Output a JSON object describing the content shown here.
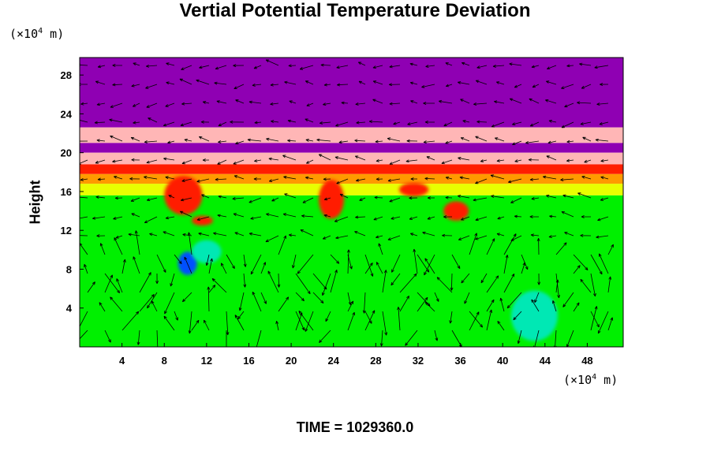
{
  "chart_data": {
    "type": "heatmap",
    "title": "Vertial Potential Temperature Deviation",
    "ylabel": "Height",
    "xlabel": "",
    "x_unit": {
      "prefix": "(×10",
      "exp": "4",
      "suffix": " m)"
    },
    "y_unit": {
      "prefix": "(×10",
      "exp": "4",
      "suffix": " m)"
    },
    "xlim": [
      0,
      51.4
    ],
    "ylim": [
      0,
      29.8
    ],
    "x_ticks": [
      4,
      8,
      12,
      16,
      20,
      24,
      28,
      32,
      36,
      40,
      44,
      48
    ],
    "y_ticks": [
      4,
      8,
      12,
      16,
      20,
      24,
      28
    ],
    "grid": false,
    "overlay": "wind vector arrows",
    "colors": {
      "top": "#8f00b3",
      "pink": "#ffb6b6",
      "red": "#ff1e00",
      "orange": "#ff9a00",
      "yellow": "#e8ff00",
      "green": "#00f000",
      "cyan": "#00e8b4",
      "blue": "#0050ff"
    },
    "layers": [
      {
        "from": 22.6,
        "to": 29.8,
        "color": "top"
      },
      {
        "from": 21.0,
        "to": 22.6,
        "color": "pink"
      },
      {
        "from": 20.0,
        "to": 21.0,
        "color": "top"
      },
      {
        "from": 18.8,
        "to": 20.0,
        "color": "pink"
      },
      {
        "from": 17.8,
        "to": 18.8,
        "color": "red"
      },
      {
        "from": 16.8,
        "to": 17.8,
        "color": "orange"
      },
      {
        "from": 15.6,
        "to": 16.8,
        "color": "yellow"
      },
      {
        "from": 0,
        "to": 15.6,
        "color": "green"
      }
    ],
    "features": [
      {
        "x": 9.8,
        "y": 15.6,
        "rx": 1.8,
        "ry": 2.0,
        "color": "red"
      },
      {
        "x": 23.8,
        "y": 15.2,
        "rx": 1.2,
        "ry": 2.0,
        "color": "red"
      },
      {
        "x": 35.6,
        "y": 14.0,
        "rx": 1.2,
        "ry": 1.0,
        "color": "red"
      },
      {
        "x": 31.6,
        "y": 16.2,
        "rx": 1.4,
        "ry": 0.7,
        "color": "red"
      },
      {
        "x": 11.6,
        "y": 13.0,
        "rx": 1.0,
        "ry": 0.5,
        "color": "red"
      },
      {
        "x": 10.2,
        "y": 8.6,
        "rx": 0.9,
        "ry": 1.2,
        "color": "blue"
      },
      {
        "x": 12.0,
        "y": 9.8,
        "rx": 1.4,
        "ry": 1.2,
        "color": "cyan"
      },
      {
        "x": 43.0,
        "y": 3.2,
        "rx": 2.2,
        "ry": 2.6,
        "color": "cyan"
      }
    ]
  },
  "time_label": "TIME = 1029360.0"
}
